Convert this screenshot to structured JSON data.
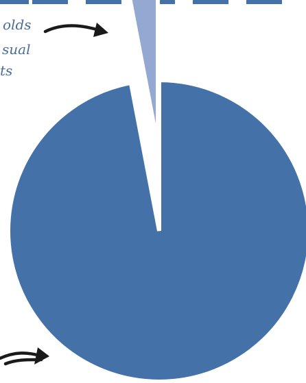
{
  "chart_data": {
    "type": "pie",
    "title": "",
    "categories": [
      "",
      ""
    ],
    "values": [
      97,
      3
    ],
    "colors": [
      "#4472a8",
      "#94a9d2"
    ],
    "exploded_slice": 1
  },
  "annotations": {
    "upper_left_lines": [
      "olds",
      "sual",
      "ts"
    ]
  },
  "colors": {
    "annotation_text": "#4a6e9a",
    "arrow": "#1a1a1a",
    "top_blocks": "#4472a8"
  }
}
